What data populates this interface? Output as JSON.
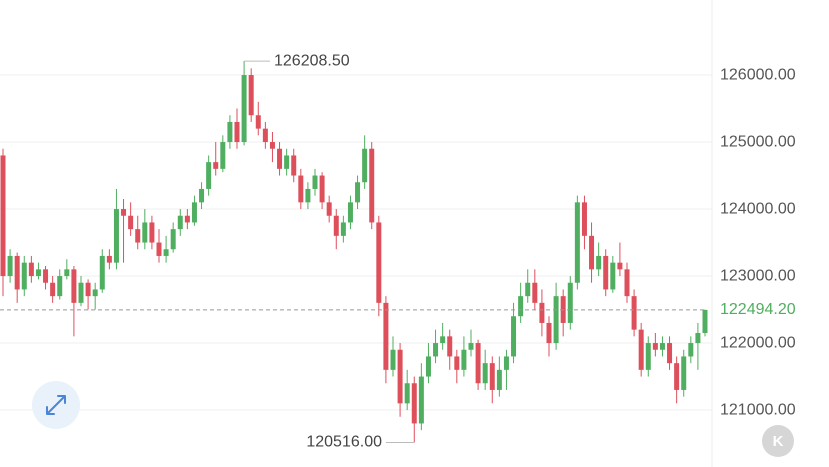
{
  "chart_data": {
    "type": "candlestick",
    "ylim": [
      120150,
      127120
    ],
    "yticks": [
      {
        "value": 121000,
        "label": "121000.00"
      },
      {
        "value": 122000,
        "label": "122000.00"
      },
      {
        "value": 123000,
        "label": "123000.00"
      },
      {
        "value": 124000,
        "label": "124000.00"
      },
      {
        "value": 125000,
        "label": "125000.00"
      },
      {
        "value": 126000,
        "label": "126000.00"
      }
    ],
    "grid": true,
    "up_color": "#4fae5f",
    "down_color": "#de4f5c",
    "last_price": {
      "value": 122494.2,
      "label": "122494.20"
    },
    "max_label": {
      "value": 126208.5,
      "label": "126208.50"
    },
    "min_label": {
      "value": 120516,
      "label": "120516.00"
    },
    "candles": [
      [
        124800,
        124900,
        122700,
        123000
      ],
      [
        123000,
        123400,
        122900,
        123300
      ],
      [
        123300,
        123350,
        122600,
        122800
      ],
      [
        122800,
        123300,
        122700,
        123200
      ],
      [
        123200,
        123300,
        122900,
        123000
      ],
      [
        123000,
        123200,
        122950,
        123100
      ],
      [
        123100,
        123150,
        122800,
        122900
      ],
      [
        122900,
        123000,
        122600,
        122700
      ],
      [
        122700,
        123100,
        122650,
        123000
      ],
      [
        123000,
        123250,
        122950,
        123100
      ],
      [
        123100,
        123150,
        122100,
        122600
      ],
      [
        122600,
        123000,
        122550,
        122900
      ],
      [
        122900,
        122950,
        122500,
        122700
      ],
      [
        122700,
        122900,
        122500,
        122800
      ],
      [
        122800,
        123400,
        122750,
        123300
      ],
      [
        123300,
        123400,
        123100,
        123200
      ],
      [
        123200,
        124300,
        123100,
        124000
      ],
      [
        124000,
        124150,
        123200,
        123900
      ],
      [
        123900,
        124100,
        123600,
        123700
      ],
      [
        123700,
        123900,
        123400,
        123500
      ],
      [
        123500,
        124000,
        123400,
        123800
      ],
      [
        123800,
        123900,
        123400,
        123500
      ],
      [
        123500,
        123700,
        123200,
        123300
      ],
      [
        123300,
        123600,
        123200,
        123400
      ],
      [
        123400,
        123800,
        123350,
        123700
      ],
      [
        123700,
        124000,
        123600,
        123900
      ],
      [
        123900,
        124000,
        123700,
        123800
      ],
      [
        123800,
        124200,
        123750,
        124100
      ],
      [
        124100,
        124400,
        124000,
        124300
      ],
      [
        124300,
        124800,
        124200,
        124700
      ],
      [
        124700,
        125000,
        124500,
        124600
      ],
      [
        124600,
        125100,
        124550,
        125000
      ],
      [
        125000,
        125400,
        124900,
        125300
      ],
      [
        125300,
        125500,
        124900,
        125000
      ],
      [
        125000,
        126208.5,
        124950,
        126000
      ],
      [
        126000,
        126100,
        125300,
        125400
      ],
      [
        125400,
        125600,
        125100,
        125200
      ],
      [
        125200,
        125300,
        124900,
        125000
      ],
      [
        125000,
        125150,
        124700,
        124900
      ],
      [
        124900,
        125000,
        124500,
        124600
      ],
      [
        124600,
        124900,
        124500,
        124800
      ],
      [
        124800,
        124900,
        124400,
        124500
      ],
      [
        124500,
        124600,
        124000,
        124100
      ],
      [
        124100,
        124400,
        124000,
        124300
      ],
      [
        124300,
        124600,
        124200,
        124500
      ],
      [
        124500,
        124550,
        124000,
        124100
      ],
      [
        124100,
        124200,
        123800,
        123900
      ],
      [
        123900,
        124000,
        123400,
        123600
      ],
      [
        123600,
        123900,
        123500,
        123800
      ],
      [
        123800,
        124200,
        123700,
        124100
      ],
      [
        124100,
        124500,
        124000,
        124400
      ],
      [
        124400,
        125100,
        124300,
        124900
      ],
      [
        124900,
        125000,
        123700,
        123800
      ],
      [
        123800,
        123900,
        122400,
        122600
      ],
      [
        122600,
        122700,
        121400,
        121600
      ],
      [
        121600,
        122100,
        121500,
        121900
      ],
      [
        121900,
        122000,
        120900,
        121100
      ],
      [
        121100,
        121600,
        121000,
        121400
      ],
      [
        121400,
        121500,
        120516,
        120800
      ],
      [
        120800,
        121700,
        120700,
        121500
      ],
      [
        121500,
        122000,
        121400,
        121800
      ],
      [
        121800,
        122200,
        121700,
        122000
      ],
      [
        122000,
        122300,
        121900,
        122100
      ],
      [
        122100,
        122200,
        121600,
        121800
      ],
      [
        121800,
        121900,
        121400,
        121600
      ],
      [
        121600,
        122100,
        121500,
        121900
      ],
      [
        121900,
        122200,
        121800,
        122000
      ],
      [
        122000,
        122050,
        121300,
        121400
      ],
      [
        121400,
        121900,
        121300,
        121700
      ],
      [
        121700,
        121800,
        121100,
        121300
      ],
      [
        121300,
        121800,
        121200,
        121600
      ],
      [
        121600,
        121900,
        121300,
        121800
      ],
      [
        121800,
        122600,
        121700,
        122400
      ],
      [
        122400,
        122900,
        122300,
        122700
      ],
      [
        122700,
        123100,
        122600,
        122900
      ],
      [
        122900,
        123100,
        122500,
        122600
      ],
      [
        122600,
        122800,
        122100,
        122300
      ],
      [
        122300,
        122400,
        121800,
        122000
      ],
      [
        122000,
        122900,
        121900,
        122700
      ],
      [
        122700,
        122800,
        122100,
        122300
      ],
      [
        122300,
        123000,
        122200,
        122900
      ],
      [
        122900,
        124200,
        122800,
        124100
      ],
      [
        124100,
        124200,
        123400,
        123600
      ],
      [
        123600,
        123800,
        122900,
        123100
      ],
      [
        123100,
        123500,
        123000,
        123300
      ],
      [
        123300,
        123400,
        122700,
        122800
      ],
      [
        122800,
        123300,
        122750,
        123200
      ],
      [
        123200,
        123500,
        123000,
        123100
      ],
      [
        123100,
        123200,
        122600,
        122700
      ],
      [
        122700,
        122800,
        122100,
        122200
      ],
      [
        122200,
        122300,
        121500,
        121600
      ],
      [
        121600,
        122100,
        121500,
        122000
      ],
      [
        122000,
        122150,
        121800,
        121900
      ],
      [
        121900,
        122100,
        121800,
        122000
      ],
      [
        122000,
        122100,
        121600,
        121700
      ],
      [
        121700,
        121800,
        121100,
        121300
      ],
      [
        121300,
        121900,
        121200,
        121800
      ],
      [
        121800,
        122100,
        121700,
        122000
      ],
      [
        122000,
        122300,
        121600,
        122150
      ],
      [
        122150,
        122500,
        122100,
        122494.2
      ]
    ]
  },
  "controls": {
    "latest_button": "K"
  }
}
